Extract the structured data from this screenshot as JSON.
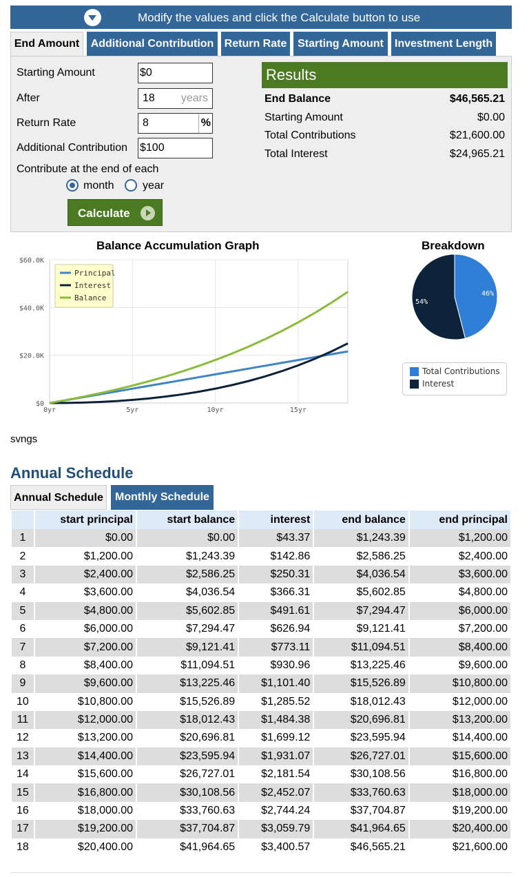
{
  "banner": {
    "text": "Modify the values and click the Calculate button to use"
  },
  "tabs": [
    "End Amount",
    "Additional Contribution",
    "Return Rate",
    "Starting Amount",
    "Investment Length"
  ],
  "form": {
    "starting_amount_label": "Starting Amount",
    "starting_amount_value": "$0",
    "after_label": "After",
    "after_value": "18",
    "after_suffix": "years",
    "return_rate_label": "Return Rate",
    "return_rate_value": "8",
    "return_rate_suffix": "%",
    "additional_label": "Additional Contribution",
    "additional_value": "$100",
    "contribute_label": "Contribute at the end of each",
    "radio_month": "month",
    "radio_year": "year",
    "selected": "month",
    "calculate_label": "Calculate"
  },
  "results": {
    "title": "Results",
    "rows": [
      {
        "label": "End Balance",
        "value": "$46,565.21"
      },
      {
        "label": "Starting Amount",
        "value": "$0.00"
      },
      {
        "label": "Total Contributions",
        "value": "$21,600.00"
      },
      {
        "label": "Total Interest",
        "value": "$24,965.21"
      }
    ]
  },
  "graph": {
    "title": "Balance Accumulation Graph",
    "y_ticks": [
      "$60.0K",
      "$40.0K",
      "$20.0K",
      "$0"
    ],
    "x_ticks": [
      "0yr",
      "5yr",
      "10yr",
      "15yr"
    ],
    "legend": [
      "Principal",
      "Interest",
      "Balance"
    ],
    "colors": {
      "principal": "#3d85c6",
      "interest": "#0c2038",
      "balance": "#8bbb3a"
    }
  },
  "breakdown": {
    "title": "Breakdown",
    "labels": [
      "Total Contributions",
      "Interest"
    ],
    "pct_labels": [
      "46%",
      "54%"
    ],
    "colors": [
      "#2f7ed8",
      "#0d233a"
    ]
  },
  "chart_data": [
    {
      "type": "line",
      "title": "Balance Accumulation Graph",
      "x": [
        0,
        1,
        2,
        3,
        4,
        5,
        6,
        7,
        8,
        9,
        10,
        11,
        12,
        13,
        14,
        15,
        16,
        17,
        18
      ],
      "ylim": [
        0,
        60000
      ],
      "xlim": [
        0,
        18
      ],
      "legend": "top-left",
      "grid": true,
      "series": [
        {
          "name": "Principal",
          "values": [
            0,
            1200,
            2400,
            3600,
            4800,
            6000,
            7200,
            8400,
            9600,
            10800,
            12000,
            13200,
            14400,
            15600,
            16800,
            18000,
            19200,
            20400,
            21600
          ]
        },
        {
          "name": "Interest",
          "values": [
            0,
            43.37,
            186.39,
            436.54,
            802.85,
            1294.47,
            1921.41,
            2694.51,
            3625.46,
            4726.89,
            6012.43,
            7496.81,
            9195.94,
            11127.01,
            13308.56,
            15760.63,
            18504.87,
            21564.65,
            24965.21
          ]
        },
        {
          "name": "Balance",
          "values": [
            0,
            1243.39,
            2586.25,
            4036.54,
            5602.85,
            7294.47,
            9121.41,
            11094.51,
            13225.46,
            15526.89,
            18012.43,
            20696.81,
            23595.94,
            26727.01,
            30108.56,
            33760.63,
            37704.87,
            41964.65,
            46565.21
          ]
        }
      ]
    },
    {
      "type": "pie",
      "title": "Breakdown",
      "categories": [
        "Total Contributions",
        "Interest"
      ],
      "values": [
        46,
        54
      ],
      "legend": "bottom"
    }
  ],
  "misc": {
    "svngs": "svngs"
  },
  "schedule": {
    "title": "Annual Schedule",
    "tabs": [
      "Annual Schedule",
      "Monthly Schedule"
    ],
    "headers": [
      "",
      "start principal",
      "start balance",
      "interest",
      "end balance",
      "end principal"
    ],
    "rows": [
      [
        "1",
        "$0.00",
        "$0.00",
        "$43.37",
        "$1,243.39",
        "$1,200.00"
      ],
      [
        "2",
        "$1,200.00",
        "$1,243.39",
        "$142.86",
        "$2,586.25",
        "$2,400.00"
      ],
      [
        "3",
        "$2,400.00",
        "$2,586.25",
        "$250.31",
        "$4,036.54",
        "$3,600.00"
      ],
      [
        "4",
        "$3,600.00",
        "$4,036.54",
        "$366.31",
        "$5,602.85",
        "$4,800.00"
      ],
      [
        "5",
        "$4,800.00",
        "$5,602.85",
        "$491.61",
        "$7,294.47",
        "$6,000.00"
      ],
      [
        "6",
        "$6,000.00",
        "$7,294.47",
        "$626.94",
        "$9,121.41",
        "$7,200.00"
      ],
      [
        "7",
        "$7,200.00",
        "$9,121.41",
        "$773.11",
        "$11,094.51",
        "$8,400.00"
      ],
      [
        "8",
        "$8,400.00",
        "$11,094.51",
        "$930.96",
        "$13,225.46",
        "$9,600.00"
      ],
      [
        "9",
        "$9,600.00",
        "$13,225.46",
        "$1,101.40",
        "$15,526.89",
        "$10,800.00"
      ],
      [
        "10",
        "$10,800.00",
        "$15,526.89",
        "$1,285.52",
        "$18,012.43",
        "$12,000.00"
      ],
      [
        "11",
        "$12,000.00",
        "$18,012.43",
        "$1,484.38",
        "$20,696.81",
        "$13,200.00"
      ],
      [
        "12",
        "$13,200.00",
        "$20,696.81",
        "$1,699.12",
        "$23,595.94",
        "$14,400.00"
      ],
      [
        "13",
        "$14,400.00",
        "$23,595.94",
        "$1,931.07",
        "$26,727.01",
        "$15,600.00"
      ],
      [
        "14",
        "$15,600.00",
        "$26,727.01",
        "$2,181.54",
        "$30,108.56",
        "$16,800.00"
      ],
      [
        "15",
        "$16,800.00",
        "$30,108.56",
        "$2,452.07",
        "$33,760.63",
        "$18,000.00"
      ],
      [
        "16",
        "$18,000.00",
        "$33,760.63",
        "$2,744.24",
        "$37,704.87",
        "$19,200.00"
      ],
      [
        "17",
        "$19,200.00",
        "$37,704.87",
        "$3,059.79",
        "$41,964.65",
        "$20,400.00"
      ],
      [
        "18",
        "$20,400.00",
        "$41,964.65",
        "$3,400.57",
        "$46,565.21",
        "$21,600.00"
      ]
    ]
  }
}
